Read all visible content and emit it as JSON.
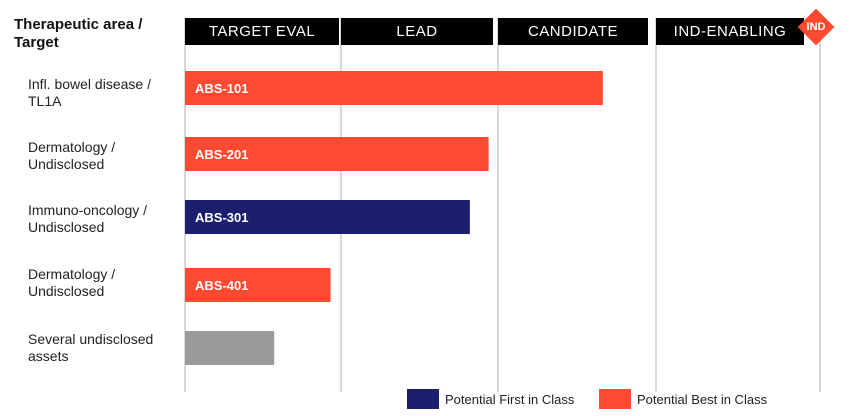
{
  "header": {
    "title": "Therapeutic area / Target"
  },
  "stages": [
    {
      "label": "TARGET EVAL"
    },
    {
      "label": "LEAD"
    },
    {
      "label": "CANDIDATE"
    },
    {
      "label": "IND-ENABLING"
    }
  ],
  "ind_marker": "IND",
  "colors": {
    "first_in_class": "#1b1f6e",
    "best_in_class": "#ff4a32",
    "undisclosed": "#9b9b9b"
  },
  "chart_data": {
    "type": "bar",
    "orientation": "horizontal",
    "value_unit": "stages completed",
    "xlim": [
      0,
      4
    ],
    "rows": [
      {
        "area": "Infl. bowel disease / TL1A",
        "bar_label": "ABS-101",
        "progress": 2.67,
        "class": "best"
      },
      {
        "area": "Dermatology / Undisclosed",
        "bar_label": "ABS-201",
        "progress": 1.94,
        "class": "best"
      },
      {
        "area": "Immuno-oncology / Undisclosed",
        "bar_label": "ABS-301",
        "progress": 1.82,
        "class": "first"
      },
      {
        "area": "Dermatology / Undisclosed",
        "bar_label": "ABS-401",
        "progress": 0.93,
        "class": "best"
      },
      {
        "area": "Several undisclosed assets",
        "bar_label": "",
        "progress": 0.57,
        "class": "undisclosed"
      }
    ],
    "legend": [
      {
        "label": "Potential First in Class",
        "class": "first"
      },
      {
        "label": "Potential Best in Class",
        "class": "best"
      }
    ]
  }
}
